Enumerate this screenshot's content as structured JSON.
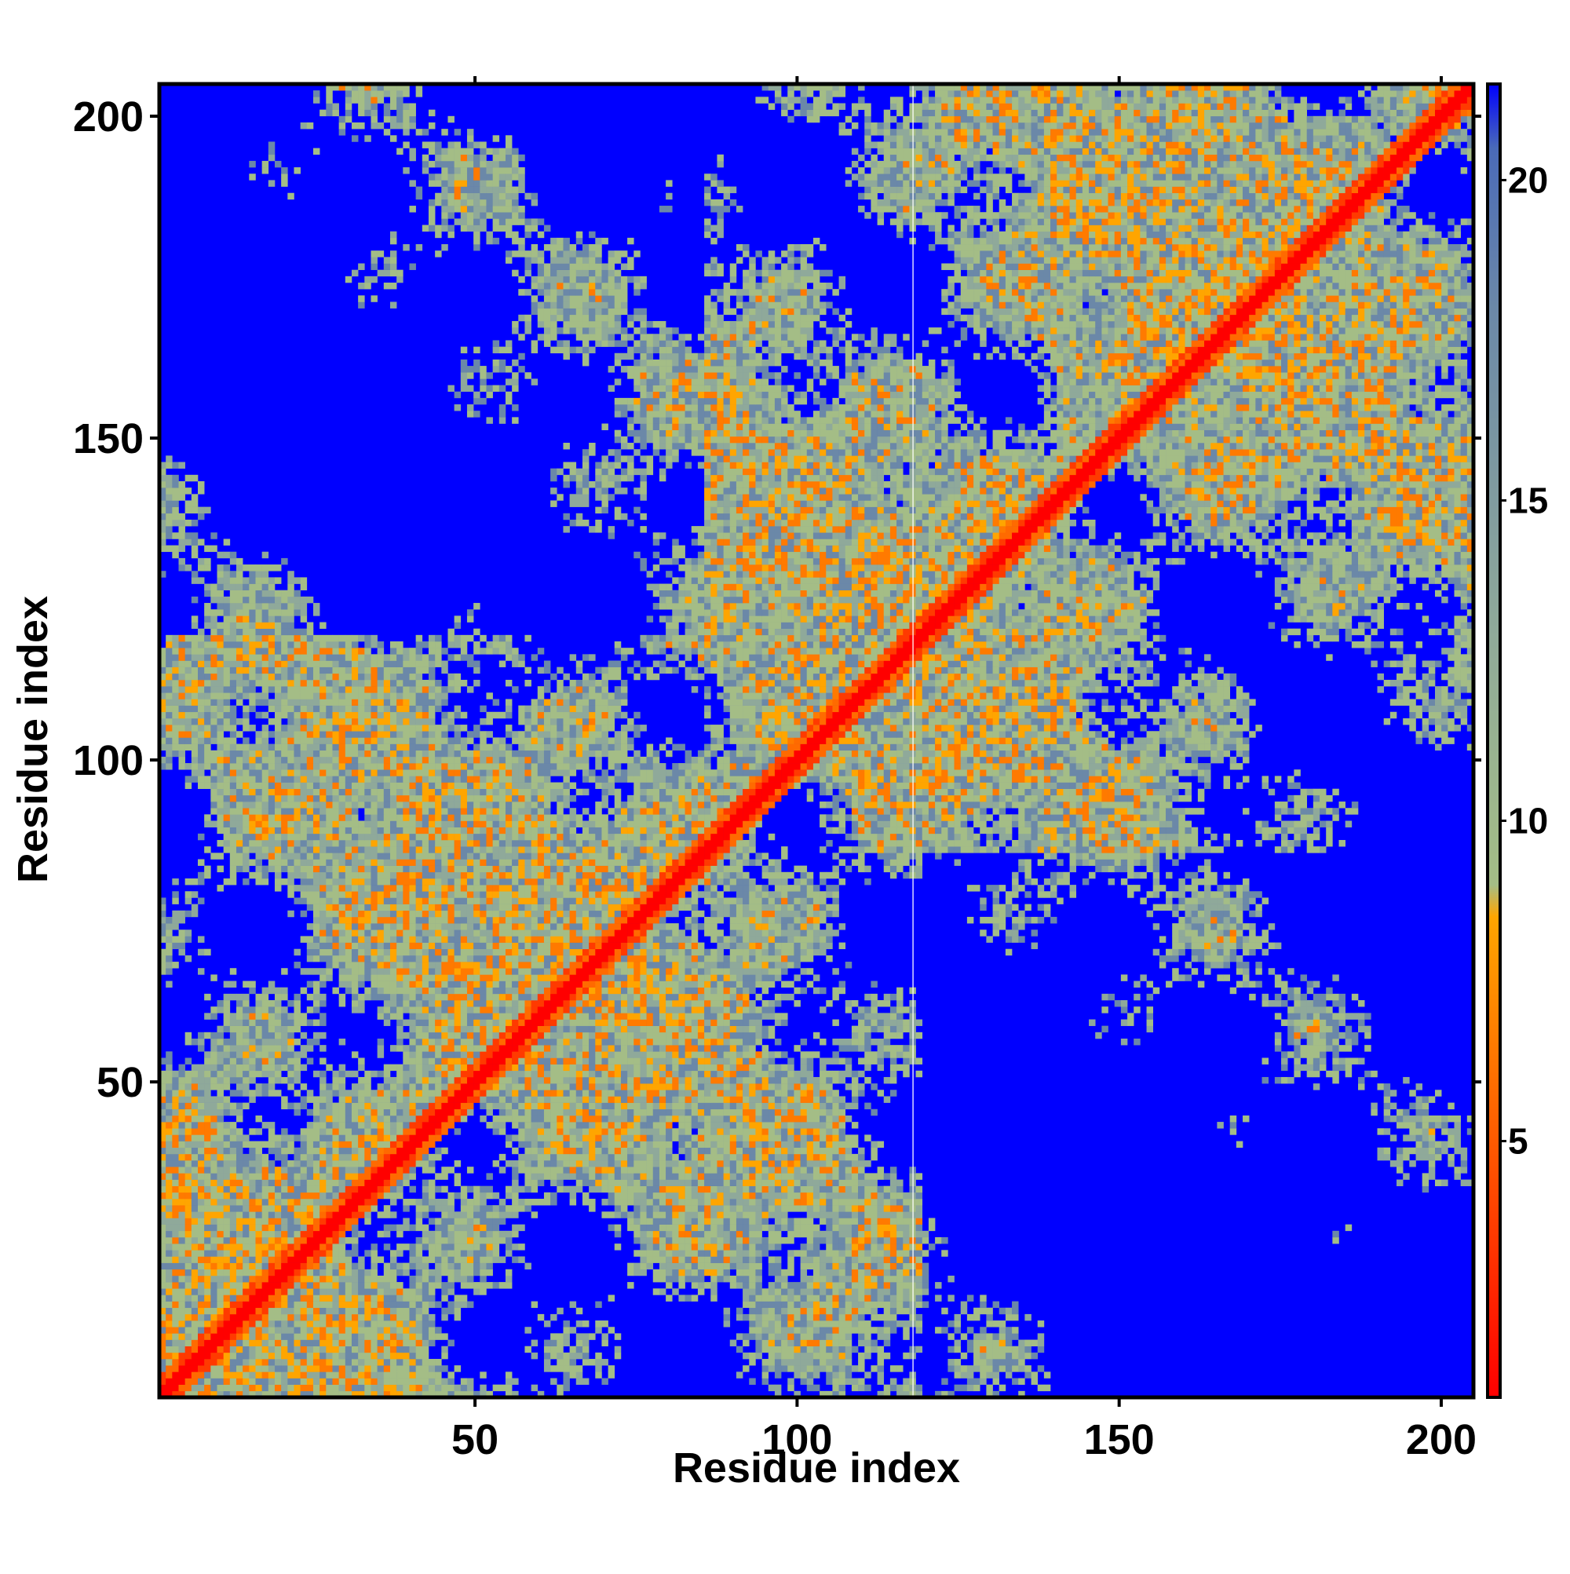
{
  "chart_data": {
    "type": "heatmap",
    "title": "",
    "xlabel": "Residue index",
    "ylabel": "Residue index",
    "xlim": [
      1,
      205
    ],
    "ylim": [
      1,
      205
    ],
    "x_ticks": [
      50,
      100,
      150,
      200
    ],
    "y_ticks": [
      50,
      100,
      150,
      200
    ],
    "colorbar": {
      "ticks": [
        5,
        10,
        15,
        20
      ],
      "range": [
        1,
        21.5
      ],
      "stops": [
        {
          "value": 1,
          "color": "#ff0000"
        },
        {
          "value": 5,
          "color": "#ff5a00"
        },
        {
          "value": 8.5,
          "color": "#ffa500"
        },
        {
          "value": 9,
          "color": "#a4bd86"
        },
        {
          "value": 13,
          "color": "#8fa99a"
        },
        {
          "value": 18,
          "color": "#6b88a8"
        },
        {
          "value": 20.5,
          "color": "#4a6ab8"
        },
        {
          "value": 21.5,
          "color": "#0000ff"
        }
      ]
    },
    "values_description": "",
    "background_color": "#0000ff",
    "diagonal_color": "#ff0000",
    "contact_color": "#ffa500",
    "mid_distance_color": "#a4bd86",
    "highlight_column": 118
  }
}
